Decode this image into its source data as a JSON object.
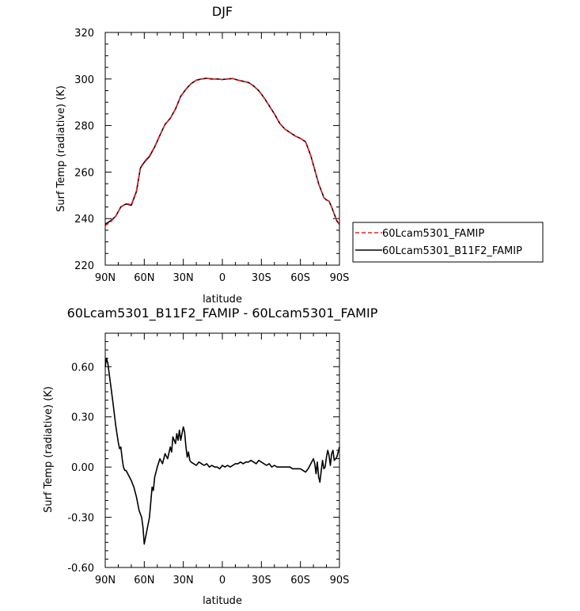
{
  "chart_data": [
    {
      "type": "line",
      "title": "DJF",
      "xlabel": "latitude",
      "ylabel": "Surf Temp (radiative) (K)",
      "xlim": [
        -90,
        90
      ],
      "ylim": [
        220,
        320
      ],
      "xticks": [
        -90,
        -60,
        -30,
        0,
        30,
        60,
        90
      ],
      "xticklabels": [
        "90N",
        "60N",
        "30N",
        "0",
        "30S",
        "60S",
        "90S"
      ],
      "yticks": [
        220,
        240,
        260,
        280,
        300,
        320
      ],
      "yticklabels": [
        "220",
        "240",
        "260",
        "280",
        "300",
        "320"
      ],
      "grid": false,
      "legend": "right",
      "series": [
        {
          "name": "60Lcam5301_FAMIP",
          "color": "#e8202a",
          "dash": "dashed",
          "x": [
            -90,
            -86,
            -82,
            -78,
            -74,
            -70,
            -66,
            -63,
            -60,
            -56,
            -52,
            -48,
            -44,
            -40,
            -36,
            -32,
            -28,
            -24,
            -20,
            -16,
            -12,
            -8,
            -4,
            0,
            4,
            8,
            12,
            16,
            20,
            24,
            28,
            32,
            36,
            40,
            44,
            48,
            52,
            56,
            60,
            64,
            68,
            72,
            74,
            76,
            78,
            80,
            82,
            84,
            86,
            88,
            90
          ],
          "y": [
            237,
            238.5,
            241,
            245,
            246.5,
            246,
            252,
            262,
            264.5,
            267,
            271,
            276,
            280.5,
            283,
            287,
            292.5,
            295.5,
            298,
            299.5,
            300,
            300.3,
            300,
            300,
            299.8,
            300,
            300.2,
            299.5,
            299,
            298.5,
            297,
            295,
            292,
            288.5,
            285,
            281,
            278.5,
            277,
            275.5,
            274.5,
            273,
            267,
            259,
            255,
            252,
            249,
            248,
            247.5,
            245,
            242,
            239,
            237.5
          ]
        },
        {
          "name": "60Lcam5301_B11F2_FAMIP",
          "color": "#000000",
          "dash": "solid",
          "x": [
            -90,
            -86,
            -82,
            -78,
            -74,
            -70,
            -66,
            -63,
            -60,
            -56,
            -52,
            -48,
            -44,
            -40,
            -36,
            -32,
            -28,
            -24,
            -20,
            -16,
            -12,
            -8,
            -4,
            0,
            4,
            8,
            12,
            16,
            20,
            24,
            28,
            32,
            36,
            40,
            44,
            48,
            52,
            56,
            60,
            64,
            68,
            72,
            74,
            76,
            78,
            80,
            82,
            84,
            86,
            88,
            90
          ],
          "y": [
            237.6,
            239,
            241,
            245,
            246.3,
            245.7,
            251.7,
            261.7,
            264.2,
            266.7,
            270.8,
            275.8,
            280.5,
            283.1,
            287.1,
            292.6,
            295.6,
            298,
            299.5,
            300,
            300.3,
            300,
            300,
            299.8,
            300,
            300.2,
            299.5,
            299,
            298.5,
            297,
            295,
            292,
            288.5,
            285,
            281,
            278.5,
            277,
            275.5,
            274.5,
            273,
            267,
            259,
            255,
            252,
            249,
            248,
            247.5,
            245,
            242,
            239,
            237.6
          ]
        }
      ]
    },
    {
      "type": "line",
      "title": "60Lcam5301_B11F2_FAMIP - 60Lcam5301_FAMIP",
      "xlabel": "latitude",
      "ylabel": "Surf Temp (radiative) (K)",
      "xlim": [
        -90,
        90
      ],
      "ylim": [
        -0.6,
        0.8
      ],
      "xticks": [
        -90,
        -60,
        -30,
        0,
        30,
        60,
        90
      ],
      "xticklabels": [
        "90N",
        "60N",
        "30N",
        "0",
        "30S",
        "60S",
        "90S"
      ],
      "yticks": [
        -0.6,
        -0.3,
        0.0,
        0.3,
        0.6
      ],
      "yticklabels": [
        "-0.60",
        "-0.30",
        "0.00",
        "0.30",
        "0.60"
      ],
      "grid": false,
      "series": [
        {
          "color": "#000000",
          "dash": "solid",
          "x": [
            -90,
            -89,
            -88,
            -86,
            -84,
            -82,
            -80,
            -79,
            -78,
            -77,
            -76,
            -75,
            -74,
            -72,
            -70,
            -68,
            -66,
            -64,
            -62,
            -61,
            -60,
            -58,
            -56,
            -54,
            -53,
            -52,
            -50,
            -48,
            -46,
            -44,
            -42,
            -40,
            -39,
            -38,
            -36,
            -35,
            -34,
            -33,
            -32,
            -31,
            -30,
            -29,
            -28,
            -27,
            -26,
            -25,
            -24,
            -22,
            -20,
            -18,
            -16,
            -14,
            -12,
            -10,
            -8,
            -6,
            -4,
            -2,
            0,
            2,
            4,
            6,
            8,
            10,
            12,
            14,
            16,
            18,
            20,
            22,
            24,
            26,
            28,
            30,
            32,
            34,
            36,
            38,
            40,
            42,
            44,
            46,
            48,
            50,
            52,
            54,
            56,
            58,
            60,
            62,
            64,
            66,
            68,
            70,
            71,
            72,
            73,
            74,
            75,
            76,
            77,
            78,
            79,
            80,
            81,
            82,
            83,
            84,
            85,
            86,
            87,
            88,
            89,
            90
          ],
          "y": [
            0.6,
            0.65,
            0.62,
            0.5,
            0.38,
            0.25,
            0.15,
            0.11,
            0.12,
            0.05,
            0.0,
            -0.02,
            -0.02,
            -0.05,
            -0.08,
            -0.12,
            -0.18,
            -0.26,
            -0.3,
            -0.36,
            -0.46,
            -0.38,
            -0.3,
            -0.12,
            -0.14,
            -0.06,
            0.0,
            0.05,
            0.02,
            0.08,
            0.05,
            0.12,
            0.09,
            0.18,
            0.14,
            0.2,
            0.16,
            0.22,
            0.16,
            0.2,
            0.24,
            0.21,
            0.12,
            0.06,
            0.09,
            0.04,
            0.03,
            0.02,
            0.01,
            0.03,
            0.02,
            0.01,
            0.02,
            0.0,
            0.01,
            0.0,
            0.0,
            -0.01,
            0.01,
            0.0,
            0.01,
            0.0,
            0.01,
            0.02,
            0.02,
            0.03,
            0.02,
            0.03,
            0.03,
            0.04,
            0.03,
            0.02,
            0.04,
            0.03,
            0.02,
            0.01,
            0.02,
            0.0,
            0.01,
            0.0,
            0.0,
            0.0,
            0.0,
            0.0,
            0.0,
            -0.01,
            -0.01,
            -0.01,
            -0.01,
            -0.02,
            -0.03,
            -0.01,
            0.02,
            0.05,
            0.02,
            -0.04,
            0.03,
            -0.06,
            -0.09,
            -0.02,
            0.04,
            -0.01,
            0.0,
            0.06,
            0.1,
            0.07,
            0.01,
            0.08,
            0.1,
            0.04,
            0.05,
            0.06,
            0.09,
            0.12
          ]
        }
      ]
    }
  ]
}
